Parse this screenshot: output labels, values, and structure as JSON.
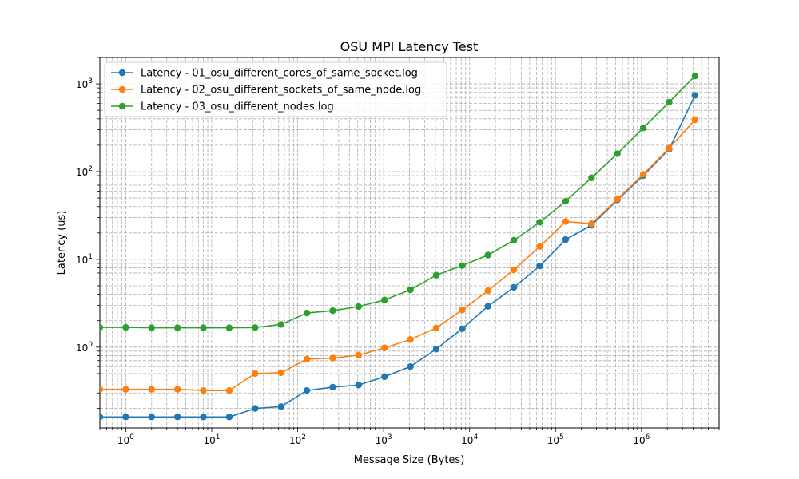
{
  "chart_data": {
    "type": "line",
    "title": "OSU MPI Latency Test",
    "xlabel": "Message Size (Bytes)",
    "ylabel": "Latency (us)",
    "xscale": "log",
    "yscale": "log",
    "xlim": [
      0.5,
      8000000
    ],
    "ylim": [
      0.12,
      2000
    ],
    "grid": true,
    "legend_position": "upper-left",
    "x": [
      0,
      1,
      2,
      4,
      8,
      16,
      32,
      64,
      128,
      256,
      512,
      1024,
      2048,
      4096,
      8192,
      16384,
      32768,
      65536,
      131072,
      262144,
      524288,
      1048576,
      2097152,
      4194304
    ],
    "x_tick_labels": [
      {
        "base": "10",
        "exp": "0",
        "value": 1
      },
      {
        "base": "10",
        "exp": "1",
        "value": 10
      },
      {
        "base": "10",
        "exp": "2",
        "value": 100
      },
      {
        "base": "10",
        "exp": "3",
        "value": 1000
      },
      {
        "base": "10",
        "exp": "4",
        "value": 10000
      },
      {
        "base": "10",
        "exp": "5",
        "value": 100000
      },
      {
        "base": "10",
        "exp": "6",
        "value": 1000000
      }
    ],
    "y_tick_labels": [
      {
        "base": "10",
        "exp": "0",
        "value": 1
      },
      {
        "base": "10",
        "exp": "1",
        "value": 10
      },
      {
        "base": "10",
        "exp": "2",
        "value": 100
      },
      {
        "base": "10",
        "exp": "3",
        "value": 1000
      }
    ],
    "series": [
      {
        "name": "Latency - 01_osu_different_cores_of_same_socket.log",
        "color": "#1f77b4",
        "values": [
          0.16,
          0.16,
          0.16,
          0.16,
          0.16,
          0.16,
          0.2,
          0.21,
          0.32,
          0.35,
          0.37,
          0.46,
          0.6,
          0.95,
          1.62,
          2.92,
          4.8,
          8.4,
          16.8,
          24.5,
          47.5,
          90.0,
          180.0,
          740.0
        ]
      },
      {
        "name": "Latency - 02_osu_different_sockets_of_same_node.log",
        "color": "#ff7f0e",
        "values": [
          0.33,
          0.33,
          0.33,
          0.33,
          0.32,
          0.32,
          0.5,
          0.51,
          0.73,
          0.75,
          0.81,
          0.98,
          1.22,
          1.65,
          2.65,
          4.4,
          7.6,
          14.0,
          27.0,
          25.5,
          48.5,
          93.0,
          185.0,
          390.0
        ]
      },
      {
        "name": "Latency - 03_osu_different_nodes.log",
        "color": "#2ca02c",
        "values": [
          1.68,
          1.68,
          1.66,
          1.66,
          1.66,
          1.66,
          1.67,
          1.81,
          2.45,
          2.6,
          2.9,
          3.45,
          4.5,
          6.6,
          8.5,
          11.2,
          16.5,
          26.5,
          46.0,
          85.0,
          160.0,
          315.0,
          620.0,
          1230.0
        ]
      }
    ]
  }
}
